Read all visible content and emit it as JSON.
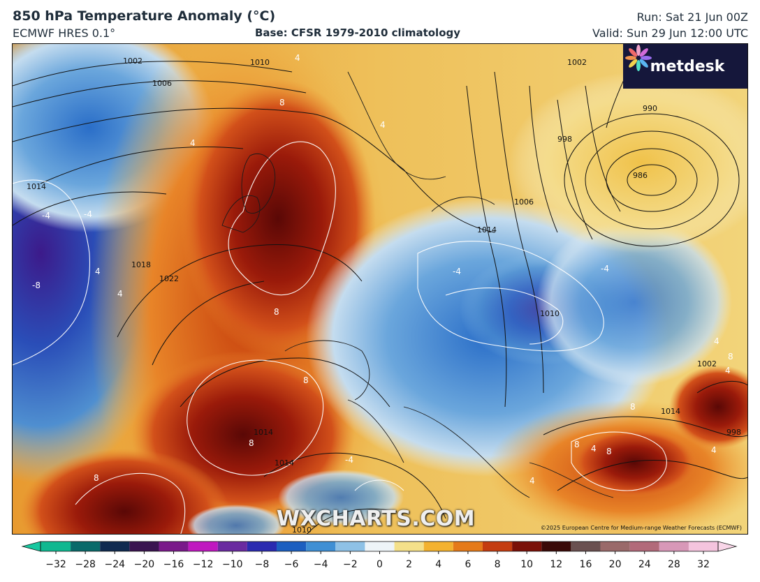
{
  "header": {
    "title": "850 hPa Temperature Anomaly (°C)",
    "model": "ECMWF HRES 0.1°",
    "base": "Base: CFSR 1979-2010 climatology",
    "run": "Run: Sat 21 Jun 00Z",
    "valid": "Valid: Sun 29 Jun 12:00 UTC"
  },
  "logo": {
    "text": "metdesk",
    "icon": "metdesk-flower-icon",
    "background": "#15173b"
  },
  "watermark": "WXCHARTS.COM",
  "copyright": "©2025 European Centre for Medium-range Weather Forecasts (ECMWF)",
  "map": {
    "isobar_labels": [
      "1002",
      "1006",
      "1010",
      "1014",
      "1018",
      "1022",
      "990",
      "986",
      "998",
      "1006",
      "1014",
      "1010",
      "1014",
      "1014",
      "1010",
      "1002",
      "1002",
      "1014",
      "998"
    ],
    "anomaly_labels": [
      "8",
      "4",
      "4",
      "-4",
      "-4",
      "-8",
      "4",
      "4",
      "8",
      "8",
      "8",
      "4",
      "-4",
      "-4",
      "-4",
      "8",
      "8",
      "8",
      "8",
      "4",
      "4",
      "4",
      "8",
      "4",
      "4"
    ]
  },
  "colorbar": {
    "ticks": [
      "−32",
      "−28",
      "−24",
      "−20",
      "−16",
      "−12",
      "−10",
      "−8",
      "−6",
      "−4",
      "−2",
      "0",
      "2",
      "4",
      "6",
      "8",
      "10",
      "12",
      "16",
      "20",
      "24",
      "28",
      "32"
    ],
    "colors": [
      "#0fb890",
      "#0a6a6a",
      "#102a50",
      "#3a1450",
      "#7a1a8a",
      "#c018c0",
      "#6a2aa0",
      "#2a2ab0",
      "#1c5fc0",
      "#3f8fd4",
      "#8ec1e6",
      "#eef4f8",
      "#f4e08a",
      "#f3b230",
      "#e57a1a",
      "#c43c10",
      "#7a1008",
      "#3a0a08",
      "#6a5050",
      "#9a6a6a",
      "#b26a7a",
      "#d898b8",
      "#f4c4de"
    ]
  }
}
